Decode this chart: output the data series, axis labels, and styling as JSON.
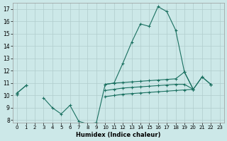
{
  "x": [
    0,
    1,
    2,
    3,
    4,
    5,
    6,
    7,
    8,
    9,
    10,
    11,
    12,
    13,
    14,
    15,
    16,
    17,
    18,
    19,
    20,
    21,
    22,
    23
  ],
  "y_main": [
    10.2,
    10.8,
    null,
    9.8,
    9.0,
    8.5,
    9.2,
    7.9,
    7.7,
    7.8,
    10.9,
    11.0,
    12.6,
    14.3,
    15.8,
    15.6,
    17.2,
    16.8,
    15.3,
    11.9,
    10.5,
    11.5,
    10.9,
    null
  ],
  "y_flat_top": [
    10.2,
    10.8,
    null,
    null,
    null,
    null,
    null,
    null,
    null,
    null,
    10.9,
    11.0,
    11.05,
    11.1,
    11.15,
    11.2,
    11.25,
    11.3,
    11.35,
    11.9,
    10.5,
    11.5,
    10.9,
    null
  ],
  "y_flat_mid": [
    10.1,
    null,
    null,
    null,
    null,
    null,
    null,
    null,
    null,
    null,
    10.4,
    10.5,
    10.6,
    10.65,
    10.7,
    10.75,
    10.8,
    10.85,
    10.9,
    10.9,
    10.5,
    null,
    10.9,
    null
  ],
  "y_flat_low": [
    10.1,
    null,
    null,
    null,
    null,
    null,
    null,
    null,
    null,
    null,
    9.9,
    10.0,
    10.1,
    10.15,
    10.2,
    10.25,
    10.3,
    10.35,
    10.4,
    10.45,
    10.5,
    null,
    10.9,
    null
  ],
  "color": "#1a7060",
  "bg_color": "#cce8e8",
  "grid_color": "#b0cccc",
  "xlabel": "Humidex (Indice chaleur)",
  "xlim": [
    -0.5,
    23.5
  ],
  "ylim": [
    7.8,
    17.5
  ],
  "yticks": [
    8,
    9,
    10,
    11,
    12,
    13,
    14,
    15,
    16,
    17
  ],
  "xticks": [
    0,
    1,
    2,
    3,
    4,
    5,
    6,
    7,
    8,
    9,
    10,
    11,
    12,
    13,
    14,
    15,
    16,
    17,
    18,
    19,
    20,
    21,
    22,
    23
  ]
}
